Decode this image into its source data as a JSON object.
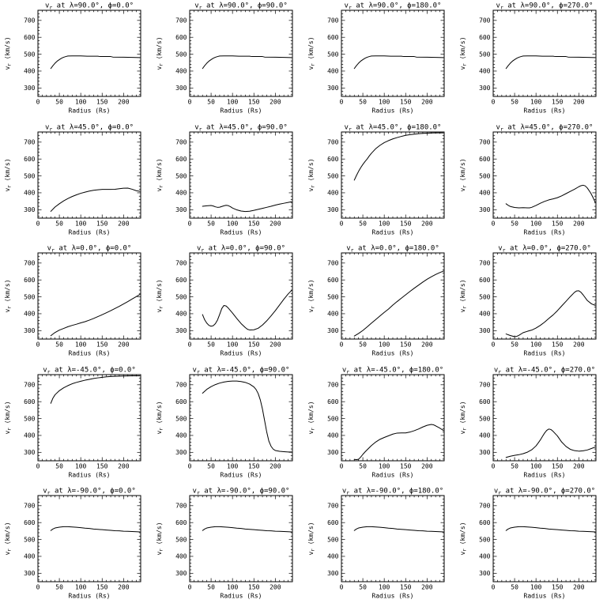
{
  "figure": {
    "vr_main": "v",
    "vr_sub": "r",
    "title_at": " at ",
    "lambda_symbol": "λ",
    "phi_symbol": "ϕ",
    "eq": "=",
    "sep": ", ",
    "degree": "°",
    "xlabel": "Radius (Rs)",
    "ylabel_rest": " (km/s)",
    "x_ticks": [
      0,
      50,
      100,
      150,
      200
    ],
    "y_ticks": [
      300,
      400,
      500,
      600,
      700
    ],
    "x_minor_step": 10,
    "y_minor_step": 20,
    "xlim": [
      0,
      240
    ],
    "ylim": [
      250,
      760
    ],
    "line_color": "#000000",
    "bg_color": "#ffffff"
  },
  "chart_data": [
    {
      "type": "line",
      "lambda": "90.0",
      "phi": "0.0",
      "x": [
        30,
        35,
        40,
        45,
        50,
        55,
        60,
        65,
        70,
        80,
        100,
        115,
        140,
        145,
        170,
        175,
        200,
        220,
        238
      ],
      "y": [
        415,
        432,
        447,
        459,
        468,
        476,
        482,
        486,
        489,
        490,
        490,
        488,
        488,
        486,
        486,
        483,
        482,
        481,
        480
      ]
    },
    {
      "type": "line",
      "lambda": "90.0",
      "phi": "90.0",
      "x": [
        30,
        35,
        40,
        45,
        50,
        55,
        60,
        65,
        70,
        80,
        100,
        115,
        140,
        145,
        170,
        175,
        200,
        220,
        238
      ],
      "y": [
        415,
        432,
        447,
        459,
        468,
        476,
        482,
        486,
        489,
        490,
        490,
        488,
        488,
        486,
        486,
        483,
        482,
        481,
        480
      ]
    },
    {
      "type": "line",
      "lambda": "90.0",
      "phi": "180.0",
      "x": [
        30,
        35,
        40,
        45,
        50,
        55,
        60,
        65,
        70,
        80,
        100,
        115,
        140,
        145,
        170,
        175,
        200,
        220,
        238
      ],
      "y": [
        415,
        432,
        447,
        459,
        468,
        476,
        482,
        486,
        489,
        490,
        490,
        488,
        488,
        486,
        486,
        483,
        482,
        481,
        480
      ]
    },
    {
      "type": "line",
      "lambda": "90.0",
      "phi": "270.0",
      "x": [
        30,
        35,
        40,
        45,
        50,
        55,
        60,
        65,
        70,
        80,
        100,
        115,
        140,
        145,
        170,
        175,
        200,
        220,
        238
      ],
      "y": [
        415,
        432,
        447,
        459,
        468,
        476,
        482,
        486,
        489,
        490,
        490,
        488,
        488,
        486,
        486,
        483,
        482,
        481,
        480
      ]
    },
    {
      "type": "line",
      "lambda": "45.0",
      "phi": "0.0",
      "x": [
        30,
        40,
        50,
        60,
        70,
        80,
        90,
        100,
        110,
        120,
        130,
        140,
        150,
        160,
        170,
        180,
        190,
        200,
        210,
        220,
        230,
        238
      ],
      "y": [
        290,
        316,
        335,
        352,
        366,
        378,
        388,
        397,
        404,
        410,
        415,
        418,
        420,
        420,
        420,
        421,
        424,
        427,
        428,
        421,
        412,
        409
      ]
    },
    {
      "type": "line",
      "lambda": "45.0",
      "phi": "90.0",
      "x": [
        30,
        40,
        50,
        55,
        60,
        65,
        70,
        75,
        80,
        85,
        90,
        95,
        100,
        110,
        120,
        130,
        140,
        150,
        160,
        170,
        180,
        190,
        200,
        210,
        220,
        230,
        238
      ],
      "y": [
        320,
        323,
        325,
        322,
        317,
        314,
        315,
        319,
        323,
        326,
        324,
        318,
        310,
        299,
        292,
        289,
        291,
        296,
        302,
        308,
        314,
        320,
        327,
        333,
        338,
        343,
        347
      ]
    },
    {
      "type": "line",
      "lambda": "45.0",
      "phi": "180.0",
      "x": [
        30,
        35,
        40,
        45,
        50,
        55,
        60,
        65,
        70,
        80,
        90,
        100,
        110,
        120,
        130,
        140,
        150,
        160,
        170,
        180,
        190,
        200,
        210,
        220,
        238
      ],
      "y": [
        475,
        502,
        527,
        549,
        568,
        585,
        600,
        618,
        634,
        661,
        681,
        697,
        709,
        719,
        727,
        734,
        740,
        744,
        747,
        750,
        752,
        753,
        754,
        755,
        755
      ]
    },
    {
      "type": "line",
      "lambda": "45.0",
      "phi": "270.0",
      "x": [
        30,
        35,
        40,
        50,
        60,
        70,
        80,
        85,
        90,
        100,
        110,
        120,
        130,
        140,
        150,
        160,
        170,
        180,
        190,
        200,
        205,
        210,
        215,
        220,
        228,
        234,
        238
      ],
      "y": [
        335,
        326,
        319,
        313,
        311,
        312,
        311,
        311,
        314,
        325,
        338,
        349,
        358,
        364,
        371,
        382,
        395,
        408,
        421,
        436,
        442,
        445,
        441,
        428,
        398,
        368,
        345
      ]
    },
    {
      "type": "line",
      "lambda": "0.0",
      "phi": "0.0",
      "x": [
        30,
        40,
        50,
        60,
        70,
        80,
        90,
        100,
        110,
        120,
        130,
        140,
        150,
        160,
        170,
        180,
        190,
        200,
        210,
        220,
        230,
        238
      ],
      "y": [
        270,
        289,
        303,
        313,
        323,
        331,
        338,
        346,
        353,
        362,
        372,
        383,
        394,
        406,
        418,
        431,
        444,
        458,
        472,
        487,
        502,
        514
      ]
    },
    {
      "type": "line",
      "lambda": "0.0",
      "phi": "90.0",
      "x": [
        30,
        35,
        40,
        45,
        50,
        55,
        60,
        65,
        70,
        75,
        80,
        85,
        90,
        100,
        110,
        120,
        130,
        135,
        140,
        150,
        160,
        170,
        180,
        190,
        200,
        210,
        220,
        230,
        238
      ],
      "y": [
        395,
        364,
        344,
        331,
        326,
        329,
        341,
        363,
        396,
        431,
        449,
        446,
        434,
        404,
        372,
        342,
        318,
        308,
        304,
        305,
        314,
        333,
        358,
        387,
        418,
        452,
        486,
        517,
        538
      ]
    },
    {
      "type": "line",
      "lambda": "0.0",
      "phi": "180.0",
      "x": [
        30,
        40,
        50,
        60,
        70,
        80,
        90,
        100,
        110,
        120,
        130,
        140,
        150,
        160,
        170,
        180,
        190,
        200,
        210,
        220,
        230,
        238
      ],
      "y": [
        268,
        283,
        301,
        322,
        344,
        365,
        387,
        408,
        428,
        451,
        472,
        492,
        512,
        532,
        551,
        569,
        587,
        604,
        619,
        632,
        644,
        652
      ]
    },
    {
      "type": "line",
      "lambda": "0.0",
      "phi": "270.0",
      "x": [
        30,
        40,
        50,
        55,
        60,
        70,
        80,
        90,
        100,
        110,
        120,
        130,
        140,
        150,
        160,
        170,
        180,
        190,
        195,
        200,
        205,
        210,
        220,
        230,
        238
      ],
      "y": [
        280,
        271,
        264,
        266,
        272,
        288,
        296,
        303,
        315,
        331,
        350,
        372,
        393,
        418,
        446,
        473,
        501,
        527,
        535,
        536,
        527,
        512,
        478,
        458,
        450
      ]
    },
    {
      "type": "line",
      "lambda": "-45.0",
      "phi": "0.0",
      "x": [
        30,
        35,
        40,
        50,
        60,
        70,
        80,
        90,
        100,
        110,
        120,
        130,
        140,
        150,
        160,
        170,
        180,
        200,
        220,
        238
      ],
      "y": [
        590,
        621,
        641,
        665,
        682,
        695,
        706,
        714,
        721,
        727,
        732,
        737,
        741,
        744,
        747,
        749,
        750,
        752,
        753,
        753
      ]
    },
    {
      "type": "line",
      "lambda": "-45.0",
      "phi": "90.0",
      "x": [
        30,
        40,
        50,
        60,
        70,
        80,
        90,
        100,
        110,
        120,
        130,
        140,
        150,
        155,
        160,
        165,
        170,
        175,
        180,
        185,
        190,
        195,
        200,
        210,
        220,
        230,
        238
      ],
      "y": [
        650,
        673,
        689,
        701,
        710,
        716,
        720,
        722,
        722,
        719,
        714,
        704,
        687,
        672,
        648,
        610,
        556,
        488,
        420,
        366,
        336,
        319,
        311,
        306,
        304,
        302,
        302
      ]
    },
    {
      "type": "line",
      "lambda": "-45.0",
      "phi": "180.0",
      "x": [
        30,
        35,
        40,
        45,
        50,
        55,
        60,
        70,
        80,
        90,
        100,
        110,
        120,
        130,
        140,
        150,
        160,
        170,
        180,
        190,
        200,
        210,
        215,
        220,
        230,
        238
      ],
      "y": [
        258,
        257,
        259,
        272,
        288,
        302,
        315,
        340,
        361,
        377,
        388,
        398,
        408,
        414,
        415,
        415,
        420,
        428,
        438,
        450,
        460,
        465,
        463,
        457,
        443,
        430
      ]
    },
    {
      "type": "line",
      "lambda": "-45.0",
      "phi": "270.0",
      "x": [
        30,
        40,
        50,
        60,
        70,
        80,
        90,
        100,
        105,
        110,
        115,
        120,
        125,
        130,
        135,
        140,
        150,
        160,
        170,
        180,
        190,
        200,
        210,
        220,
        230,
        238
      ],
      "y": [
        270,
        277,
        282,
        286,
        292,
        301,
        315,
        338,
        355,
        373,
        394,
        414,
        430,
        438,
        435,
        424,
        397,
        361,
        335,
        318,
        310,
        307,
        309,
        314,
        323,
        331
      ]
    },
    {
      "type": "line",
      "lambda": "-90.0",
      "phi": "0.0",
      "x": [
        30,
        35,
        40,
        50,
        60,
        70,
        80,
        90,
        100,
        110,
        120,
        130,
        140,
        150,
        160,
        170,
        180,
        190,
        200,
        210,
        220,
        230,
        238
      ],
      "y": [
        553,
        562,
        568,
        573,
        576,
        576,
        574,
        572,
        570,
        567,
        565,
        562,
        560,
        558,
        556,
        554,
        552,
        551,
        549,
        548,
        547,
        546,
        545
      ]
    },
    {
      "type": "line",
      "lambda": "-90.0",
      "phi": "90.0",
      "x": [
        30,
        35,
        40,
        50,
        60,
        70,
        80,
        90,
        100,
        110,
        120,
        130,
        140,
        150,
        160,
        170,
        180,
        190,
        200,
        210,
        220,
        230,
        238
      ],
      "y": [
        553,
        562,
        568,
        573,
        576,
        576,
        574,
        572,
        570,
        567,
        565,
        562,
        560,
        558,
        556,
        554,
        552,
        551,
        549,
        548,
        547,
        546,
        545
      ]
    },
    {
      "type": "line",
      "lambda": "-90.0",
      "phi": "180.0",
      "x": [
        30,
        35,
        40,
        50,
        60,
        70,
        80,
        90,
        100,
        110,
        120,
        130,
        140,
        150,
        160,
        170,
        180,
        190,
        200,
        210,
        220,
        230,
        238
      ],
      "y": [
        553,
        562,
        568,
        573,
        576,
        576,
        574,
        572,
        570,
        567,
        565,
        562,
        560,
        558,
        556,
        554,
        552,
        551,
        549,
        548,
        547,
        546,
        545
      ]
    },
    {
      "type": "line",
      "lambda": "-90.0",
      "phi": "270.0",
      "x": [
        30,
        35,
        40,
        50,
        60,
        70,
        80,
        90,
        100,
        110,
        120,
        130,
        140,
        150,
        160,
        170,
        180,
        190,
        200,
        210,
        220,
        230,
        238
      ],
      "y": [
        553,
        562,
        568,
        573,
        576,
        576,
        574,
        572,
        570,
        567,
        565,
        562,
        560,
        558,
        556,
        554,
        552,
        551,
        549,
        548,
        547,
        546,
        545
      ]
    }
  ]
}
